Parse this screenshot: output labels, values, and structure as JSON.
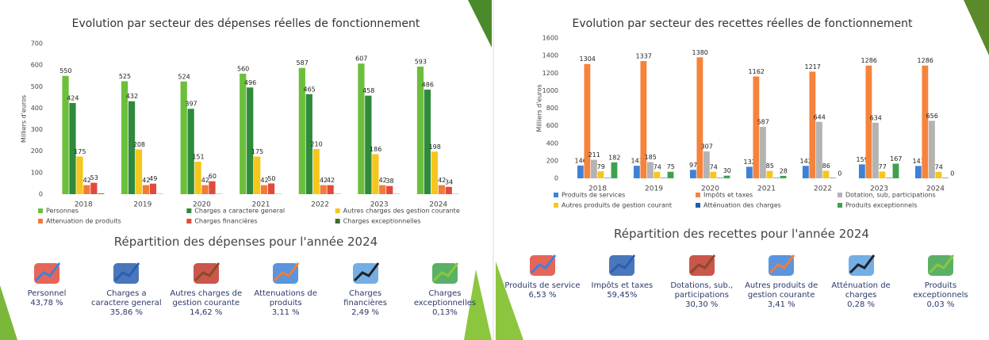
{
  "chart_data": [
    {
      "type": "bar",
      "title": "Evolution par secteur des dépenses réelles de fonctionnement",
      "y_label": "Milliers d'euros",
      "categories": [
        "2018",
        "2019",
        "2020",
        "2021",
        "2022",
        "2023",
        "2024"
      ],
      "ylim": [
        0,
        700
      ],
      "yticks": [
        0,
        100,
        200,
        300,
        400,
        500,
        600,
        700
      ],
      "grid": false,
      "series": [
        {
          "name": "Personnes",
          "color": "#6cbf3c",
          "values": [
            550,
            525,
            524,
            560,
            587,
            607,
            593
          ]
        },
        {
          "name": "Charges a caractere general",
          "color": "#2f8a3c",
          "values": [
            424,
            432,
            397,
            496,
            465,
            458,
            486
          ]
        },
        {
          "name": "Autres charges des gestion courante",
          "color": "#f6c61c",
          "values": [
            175,
            208,
            151,
            175,
            210,
            186,
            198
          ]
        },
        {
          "name": "Attenuation de produits",
          "color": "#f27b3a",
          "values": [
            42,
            42,
            42,
            42,
            42,
            42,
            42
          ]
        },
        {
          "name": "Charges financières",
          "color": "#e24a3c",
          "values": [
            53,
            49,
            60,
            50,
            42,
            38,
            34
          ]
        },
        {
          "name": "Charges exceptionnelles",
          "color": "#3d6b2c",
          "values": [
            3,
            1,
            1,
            1,
            1,
            1,
            1
          ],
          "data_labels": false
        }
      ]
    },
    {
      "type": "bar",
      "title": "Evolution par secteur des recettes réelles de fonctionnement",
      "y_label": "Milliers d'euros",
      "categories": [
        "2018",
        "2019",
        "2020",
        "2021",
        "2022",
        "2023",
        "2024"
      ],
      "ylim": [
        0,
        1600
      ],
      "yticks": [
        0,
        200,
        400,
        600,
        800,
        1000,
        1200,
        1400,
        1600
      ],
      "grid": false,
      "series": [
        {
          "name": "Produits de services",
          "color": "#3d82d8",
          "values": [
            146,
            143,
            97,
            132,
            142,
            159,
            141
          ]
        },
        {
          "name": "Impôts et taxes",
          "color": "#f6833c",
          "values": [
            1304,
            1337,
            1380,
            1162,
            1217,
            1286,
            1286
          ]
        },
        {
          "name": "Dotation, sub, participations",
          "color": "#b3b3b3",
          "values": [
            211,
            185,
            307,
            587,
            644,
            634,
            656
          ]
        },
        {
          "name": "Autres produits de gestion courant",
          "color": "#f6c61c",
          "values": [
            79,
            74,
            74,
            85,
            86,
            77,
            74
          ]
        },
        {
          "name": "Atténuation des charges",
          "color": "#1f5fae",
          "values": [
            5,
            5,
            5,
            5,
            5,
            5,
            5
          ],
          "data_labels": false
        },
        {
          "name": "Produits exceptionnels",
          "color": "#3ea24c",
          "values": [
            182,
            75,
            30,
            28,
            0,
            167,
            0
          ]
        }
      ]
    }
  ],
  "breakdowns": [
    {
      "title": "Répartition des dépenses pour l'année 2024",
      "items": [
        {
          "label": "Personnel",
          "value": "43,78 %"
        },
        {
          "label": "Charges a caractere general",
          "value": "35,86 %"
        },
        {
          "label": "Autres charges de gestion courante",
          "value": "14,62 %"
        },
        {
          "label": "Attenuations de produits",
          "value": "3,11 %"
        },
        {
          "label": "Charges financières",
          "value": "2,49 %"
        },
        {
          "label": "Charges exceptionnelles",
          "value": "0,13%"
        }
      ]
    },
    {
      "title": "Répartition des recettes pour l'année 2024",
      "items": [
        {
          "label": "Produits de service",
          "value": "6,53 %"
        },
        {
          "label": "Impôts et taxes",
          "value": "59,45%"
        },
        {
          "label": "Dotations, sub., participations",
          "value": "30,30 %"
        },
        {
          "label": "Autres produits de gestion courante",
          "value": "3,41 %"
        },
        {
          "label": "Atténuation de charges",
          "value": "0,28 %"
        },
        {
          "label": "Produits exceptionnels",
          "value": "0,03 %"
        }
      ]
    }
  ]
}
